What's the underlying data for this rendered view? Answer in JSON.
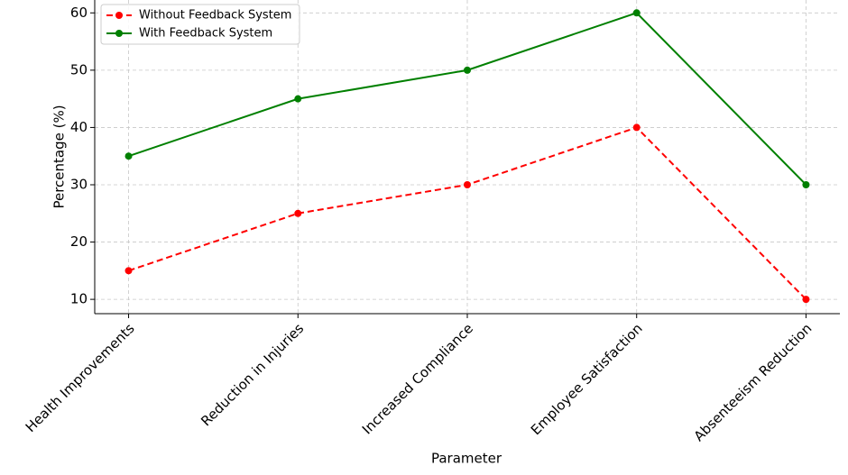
{
  "chart_data": {
    "type": "line",
    "x_label": "Parameter",
    "y_label": "Percentage (%)",
    "categories": [
      "Health Improvements",
      "Reduction in Injuries",
      "Increased Compliance",
      "Employee Satisfaction",
      "Absenteeism Reduction"
    ],
    "series": [
      {
        "name": "Without Feedback System",
        "color": "#ff0000",
        "linestyle": "dashed",
        "values": [
          15,
          25,
          30,
          40,
          10
        ]
      },
      {
        "name": "With Feedback System",
        "color": "#008000",
        "linestyle": "solid",
        "values": [
          35,
          45,
          50,
          60,
          30
        ]
      }
    ],
    "ylim": [
      7.5,
      62.25
    ],
    "yticks": [
      10,
      20,
      30,
      40,
      50,
      60
    ],
    "grid": true,
    "legend": "upper left"
  }
}
